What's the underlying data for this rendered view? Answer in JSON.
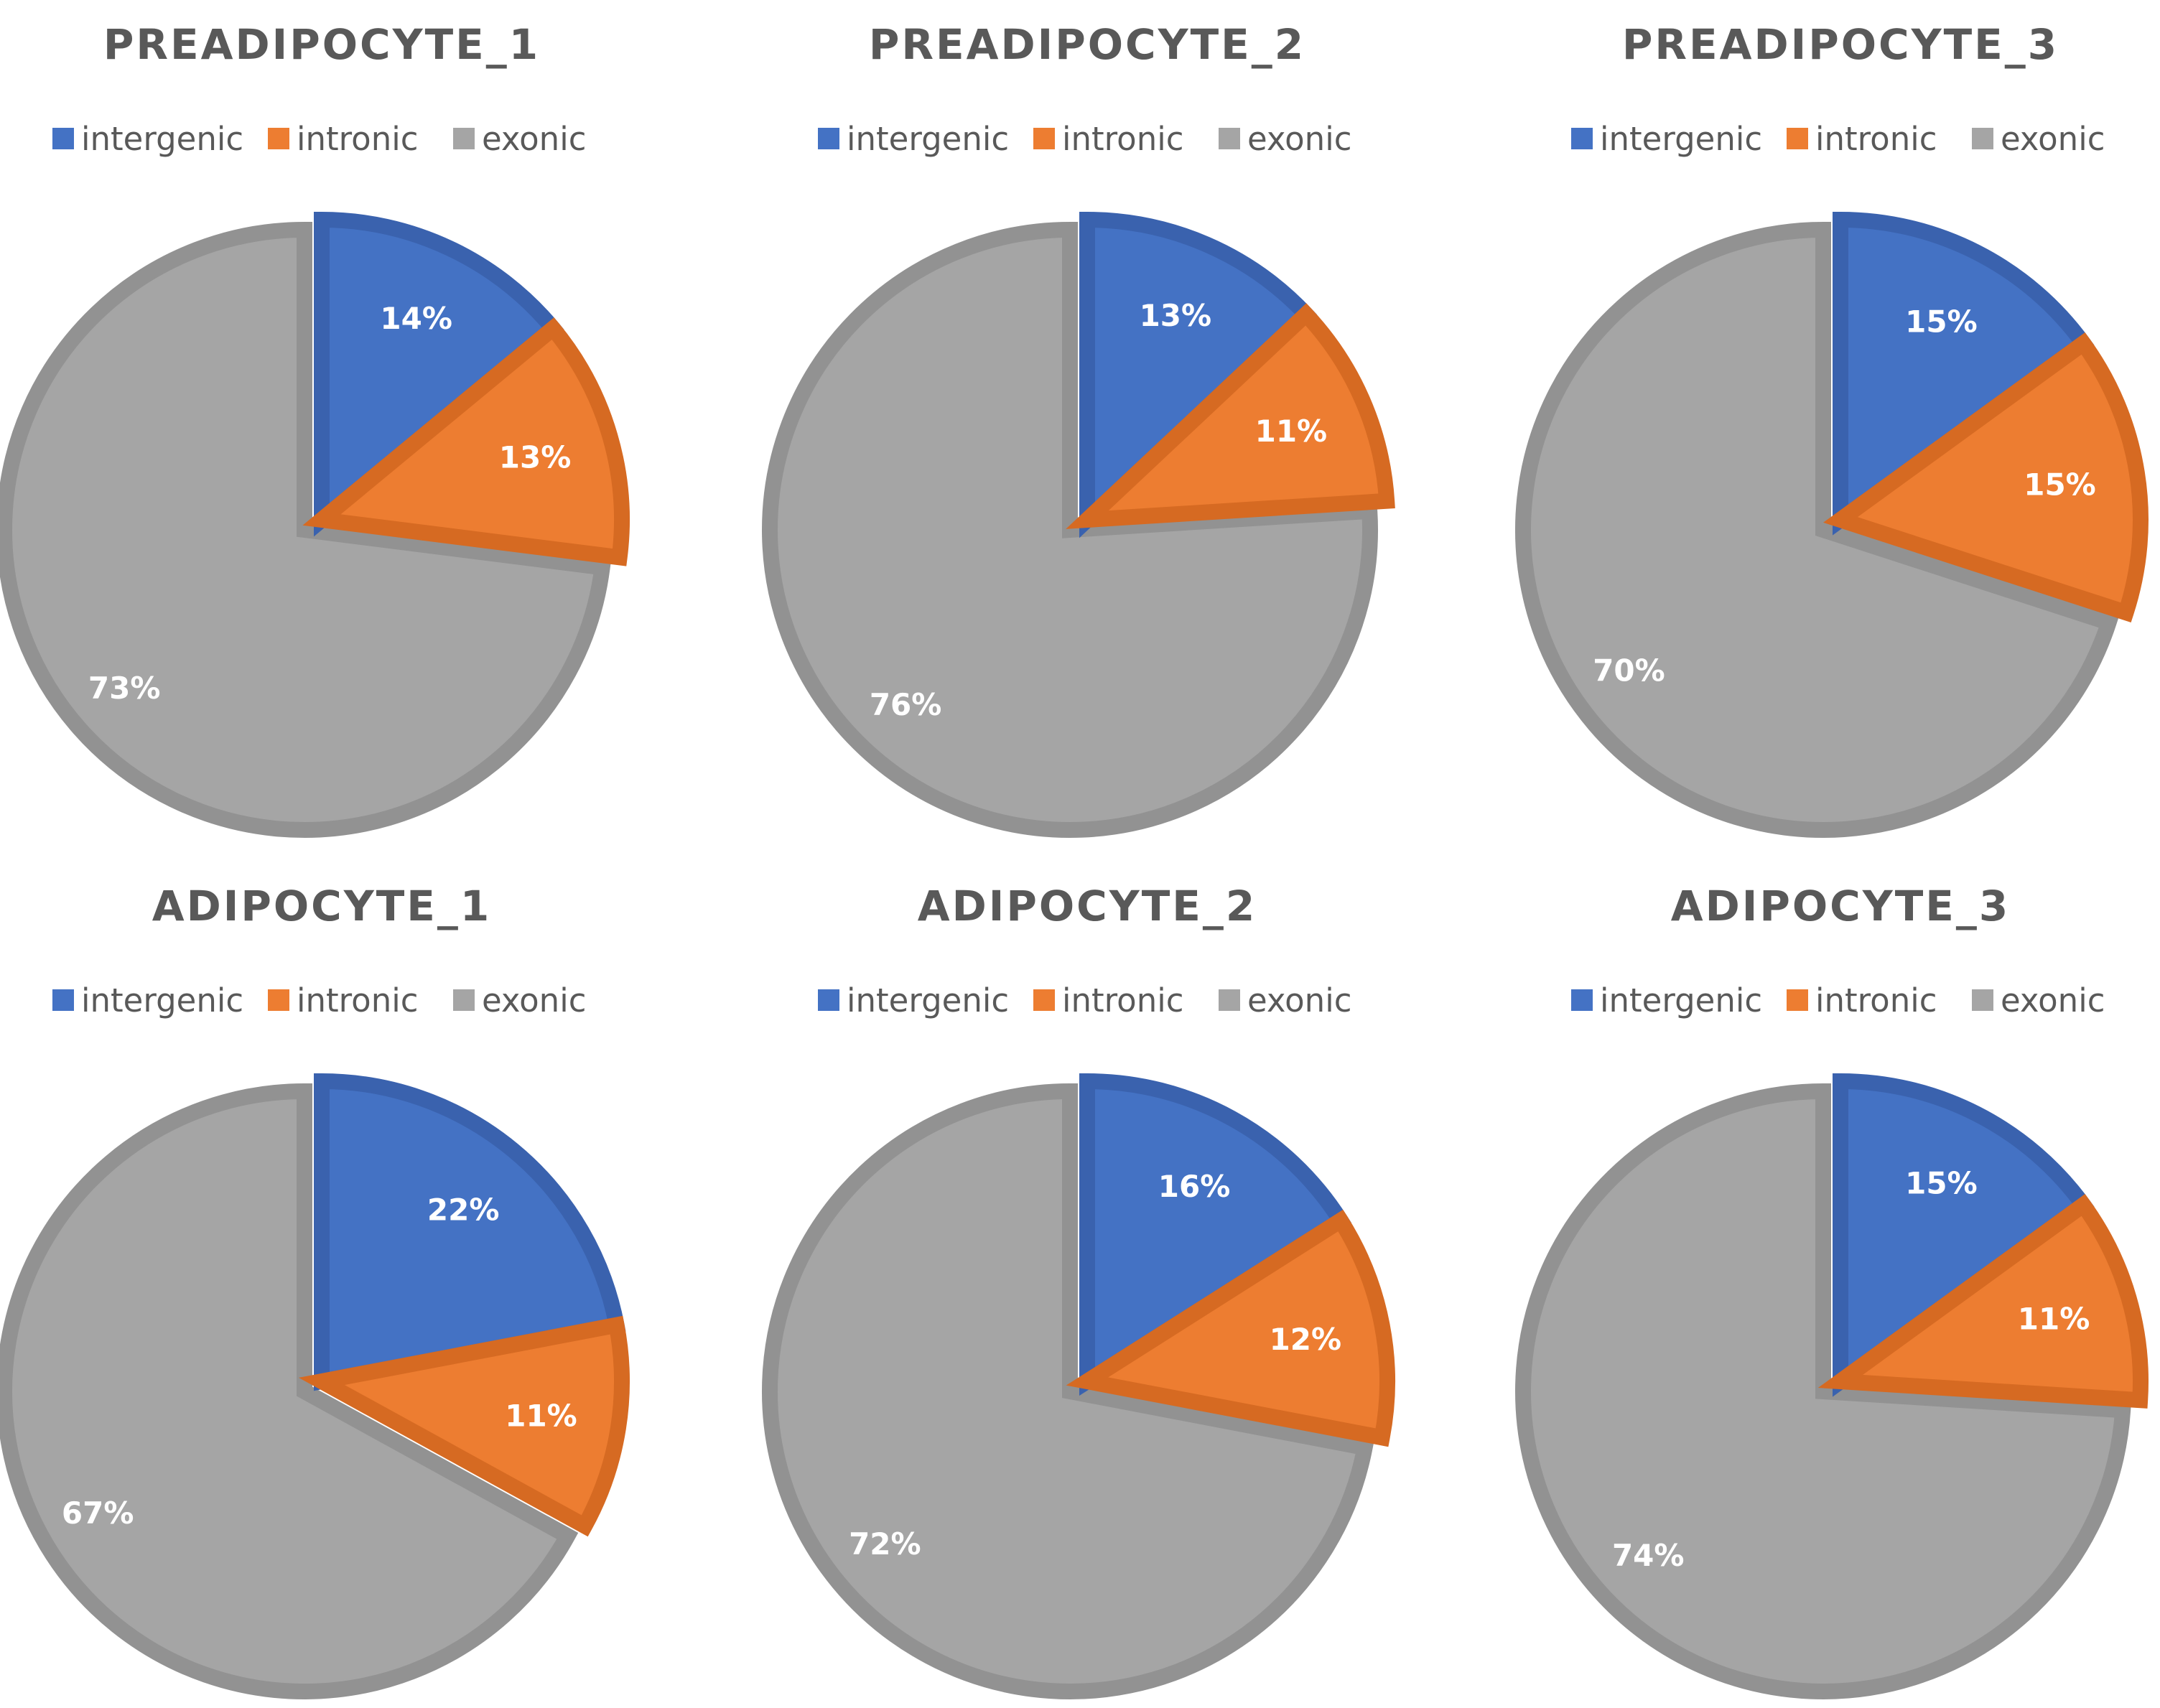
{
  "colors": {
    "intergenic": "#4472C4",
    "intronic": "#ED7D31",
    "exonic": "#A5A5A5"
  },
  "chart_data": [
    {
      "type": "pie",
      "title": "PREADIPOCYTE_1",
      "categories": [
        "intergenic",
        "intronic",
        "exonic"
      ],
      "values": [
        14,
        13,
        73
      ],
      "labels": [
        "14%",
        "13%",
        "73%"
      ],
      "legend": "top"
    },
    {
      "type": "pie",
      "title": "PREADIPOCYTE_2",
      "categories": [
        "intergenic",
        "intronic",
        "exonic"
      ],
      "values": [
        13,
        11,
        76
      ],
      "labels": [
        "13%",
        "11%",
        "76%"
      ],
      "legend": "top"
    },
    {
      "type": "pie",
      "title": "PREADIPOCYTE_3",
      "categories": [
        "intergenic",
        "intronic",
        "exonic"
      ],
      "values": [
        15,
        15,
        70
      ],
      "labels": [
        "15%",
        "15%",
        "70%"
      ],
      "legend": "top"
    },
    {
      "type": "pie",
      "title": "ADIPOCYTE_1",
      "categories": [
        "intergenic",
        "intronic",
        "exonic"
      ],
      "values": [
        22,
        11,
        67
      ],
      "labels": [
        "22%",
        "11%",
        "67%"
      ],
      "legend": "top"
    },
    {
      "type": "pie",
      "title": "ADIPOCYTE_2",
      "categories": [
        "intergenic",
        "intronic",
        "exonic"
      ],
      "values": [
        16,
        12,
        72
      ],
      "labels": [
        "16%",
        "12%",
        "72%"
      ],
      "legend": "top"
    },
    {
      "type": "pie",
      "title": "ADIPOCYTE_3",
      "categories": [
        "intergenic",
        "intronic",
        "exonic"
      ],
      "values": [
        15,
        11,
        74
      ],
      "labels": [
        "15%",
        "11%",
        "74%"
      ],
      "legend": "top"
    }
  ]
}
